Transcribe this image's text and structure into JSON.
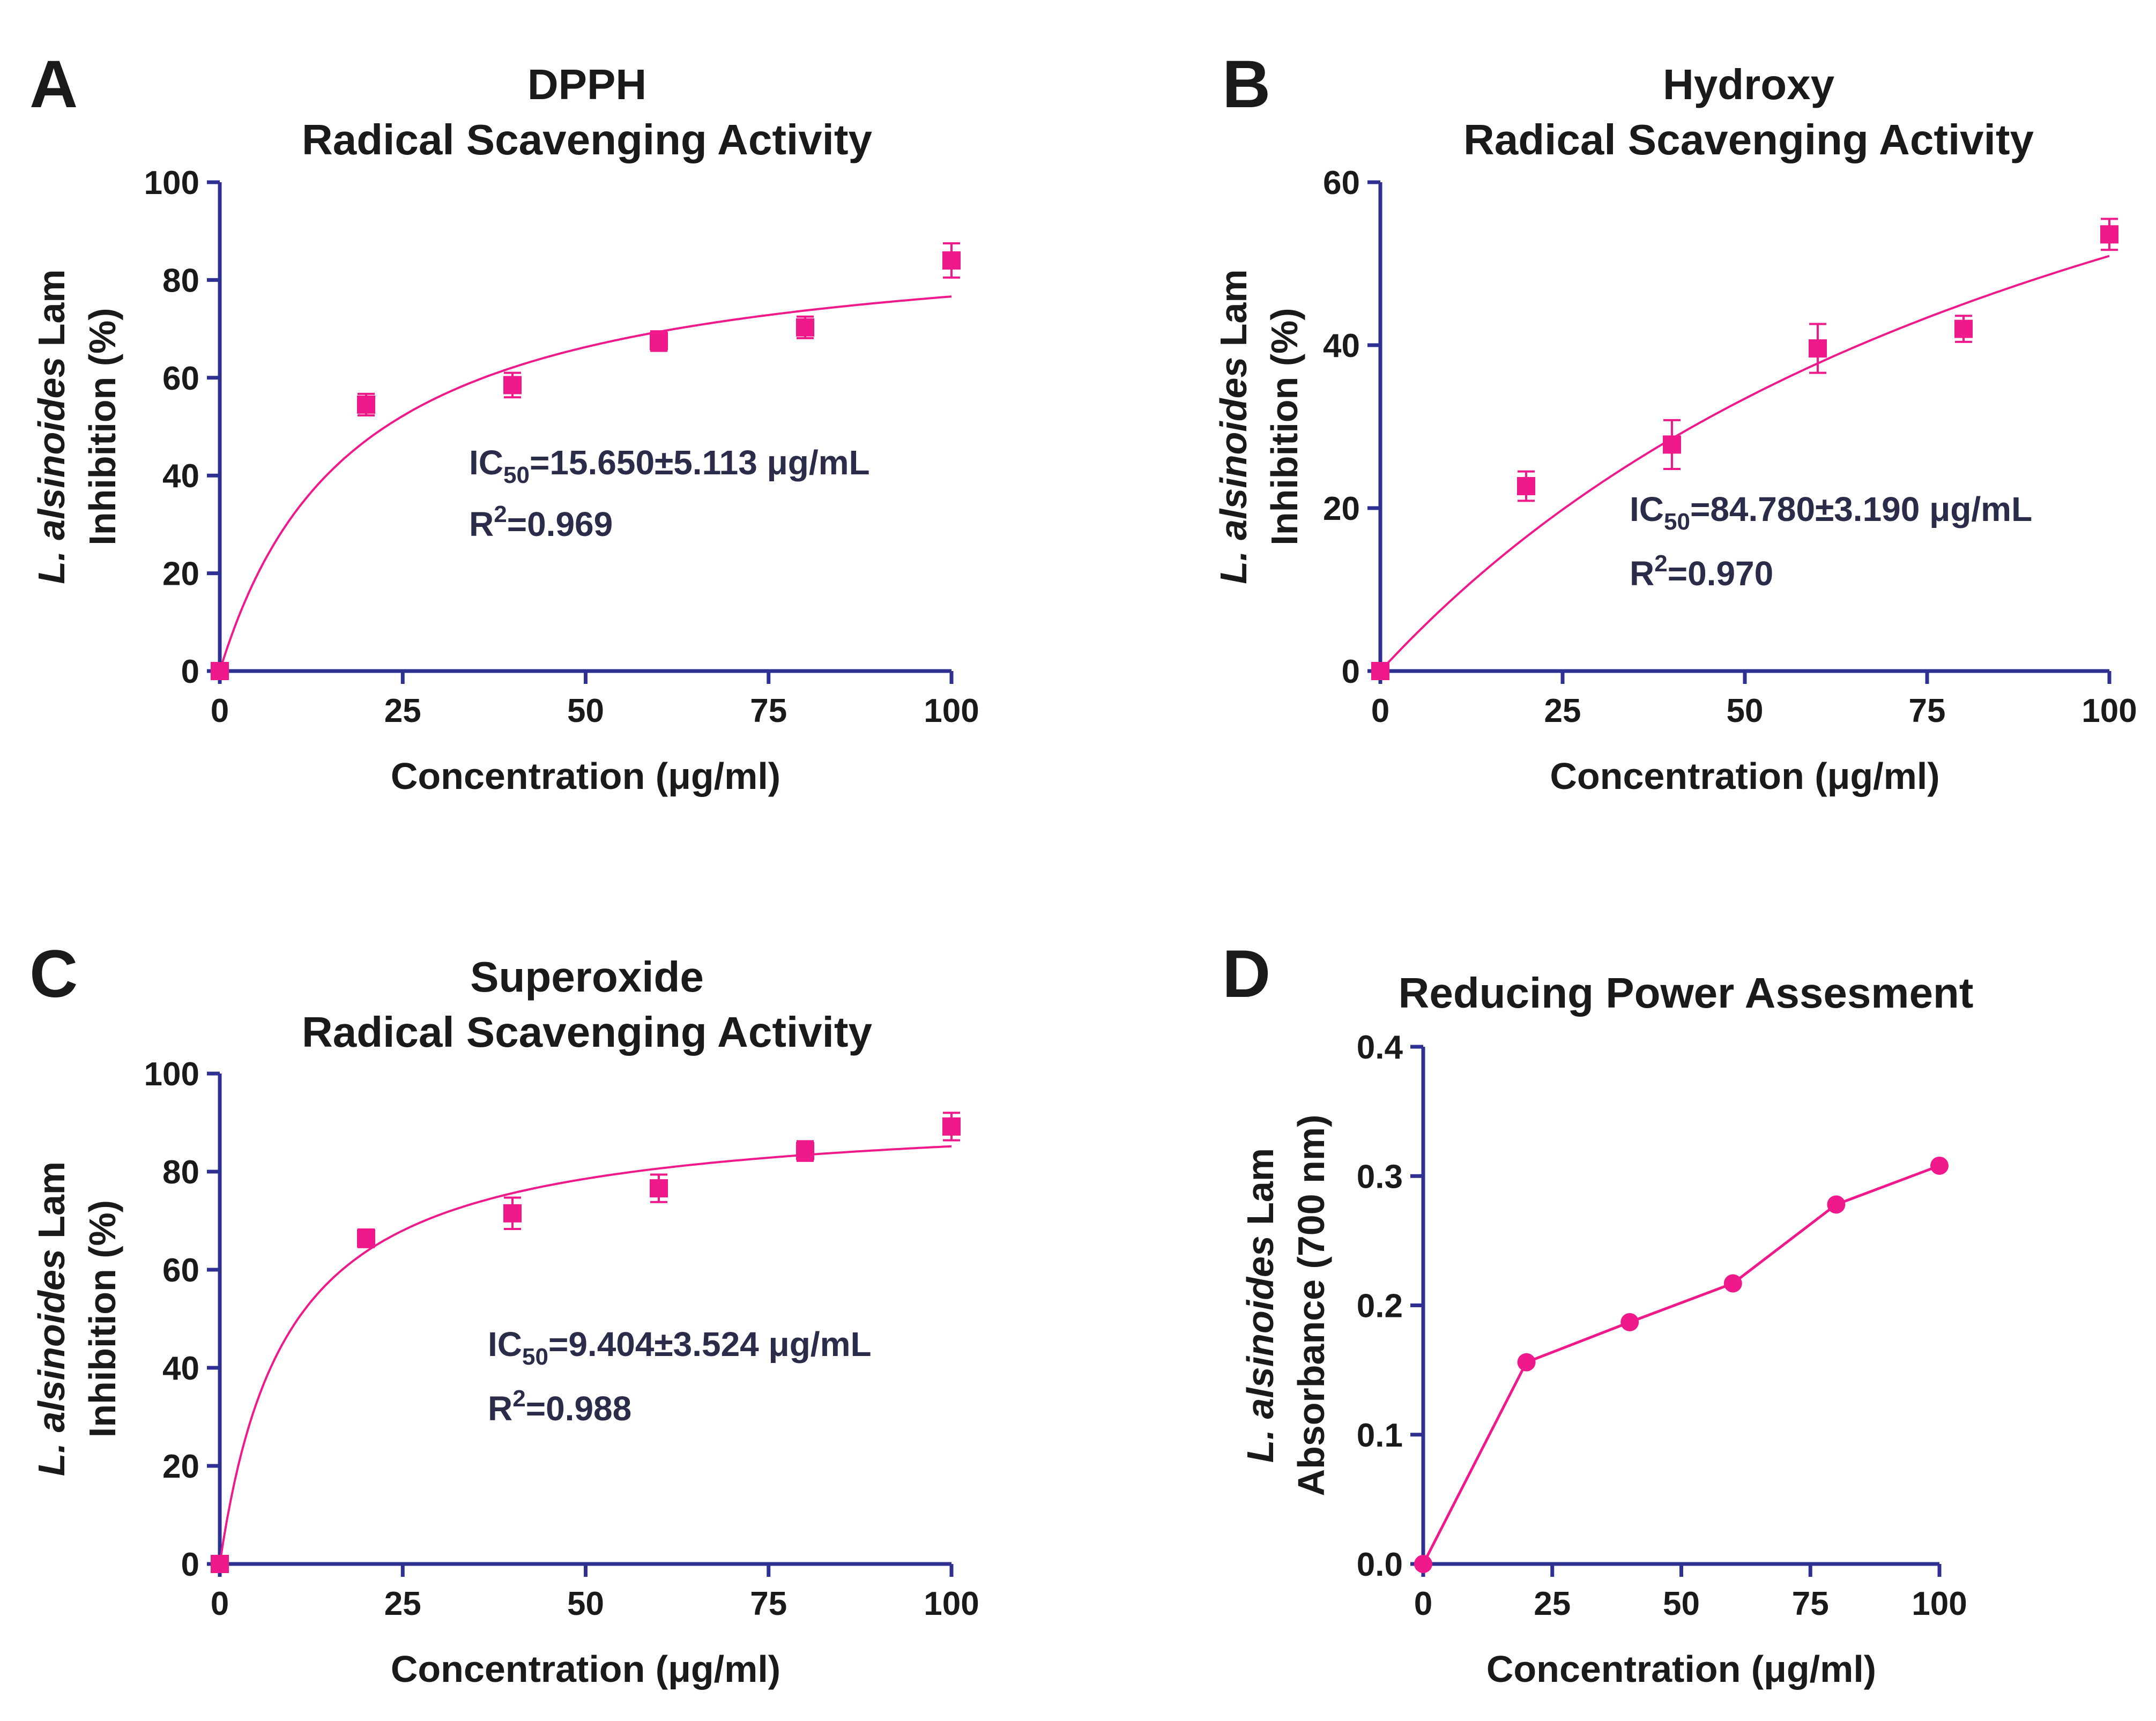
{
  "colors": {
    "axis": "#2e3192",
    "series": "#f0198c",
    "text": "#1a1a1a",
    "annotation": "#2b2b4a"
  },
  "chart_data": [
    {
      "panel": "A",
      "type": "scatter",
      "title": [
        "DPPH",
        "Radical Scavenging Activity"
      ],
      "ylabel_species_italic": "L. alsinoides",
      "ylabel_species_rest": " Lam",
      "ylabel_line2": "Inhibition (%)",
      "xlabel": "Concentration (μg/ml)",
      "xlim": [
        0,
        100
      ],
      "ylim": [
        0,
        100
      ],
      "xticks": [
        0,
        25,
        50,
        75,
        100
      ],
      "yticks": [
        0,
        20,
        40,
        60,
        80,
        100
      ],
      "x": [
        0,
        20,
        40,
        60,
        80,
        100
      ],
      "values": [
        0,
        54.5,
        58.5,
        67.5,
        70.3,
        84.0
      ],
      "errors": [
        0,
        2.2,
        2.5,
        2.0,
        2.2,
        3.5
      ],
      "fit": {
        "model": "hyperbolic",
        "vmax": 90.8,
        "k": 18.5
      },
      "annotation": {
        "ic_prefix": "IC",
        "ic_sub": "50",
        "ic_value": "=15.650±5.113 μg/mL",
        "r2_prefix": "R",
        "r2_sup": "2",
        "r2_value": "=0.969"
      }
    },
    {
      "panel": "B",
      "type": "scatter",
      "title": [
        "Hydroxy",
        "Radical Scavenging Activity"
      ],
      "ylabel_species_italic": "L. alsinoides",
      "ylabel_species_rest": " Lam",
      "ylabel_line2": "Inhibition (%)",
      "xlabel": "Concentration (μg/ml)",
      "xlim": [
        0,
        100
      ],
      "ylim": [
        0,
        60
      ],
      "xticks": [
        0,
        25,
        50,
        75,
        100
      ],
      "yticks": [
        0,
        20,
        40,
        60
      ],
      "x": [
        0,
        20,
        40,
        60,
        80,
        100
      ],
      "values": [
        0,
        22.7,
        27.8,
        39.6,
        42.0,
        53.6
      ],
      "errors": [
        0,
        1.8,
        3.0,
        3.0,
        1.6,
        1.9
      ],
      "fit": {
        "model": "hyperbolic",
        "vmax": 107.0,
        "k": 110.0
      },
      "annotation": {
        "ic_prefix": "IC",
        "ic_sub": "50",
        "ic_value": "=84.780±3.190 μg/mL",
        "r2_prefix": "R",
        "r2_sup": "2",
        "r2_value": "=0.970"
      }
    },
    {
      "panel": "C",
      "type": "scatter",
      "title": [
        "Superoxide",
        "Radical Scavenging Activity"
      ],
      "ylabel_species_italic": "L. alsinoides",
      "ylabel_species_rest": " Lam",
      "ylabel_line2": "Inhibition (%)",
      "xlabel": "Concentration (μg/ml)",
      "xlim": [
        0,
        100
      ],
      "ylim": [
        0,
        100
      ],
      "xticks": [
        0,
        25,
        50,
        75,
        100
      ],
      "yticks": [
        0,
        20,
        40,
        60,
        80,
        100
      ],
      "x": [
        0,
        20,
        40,
        60,
        80,
        100
      ],
      "values": [
        0,
        66.4,
        71.5,
        76.6,
        84.2,
        89.2
      ],
      "errors": [
        0,
        1.8,
        3.2,
        2.8,
        2.0,
        2.8
      ],
      "fit": {
        "model": "hyperbolic",
        "vmax": 93.0,
        "k": 9.2
      },
      "annotation": {
        "ic_prefix": "IC",
        "ic_sub": "50",
        "ic_value": "=9.404±3.524 μg/mL",
        "r2_prefix": "R",
        "r2_sup": "2",
        "r2_value": "=0.988"
      }
    },
    {
      "panel": "D",
      "type": "line",
      "title": [
        "Reducing Power Assesment"
      ],
      "ylabel_species_italic": "L. alsinoides",
      "ylabel_species_rest": " Lam",
      "ylabel_line2": "Absorbance (700 nm)",
      "xlabel": "Concentration (μg/ml)",
      "xlim": [
        0,
        100
      ],
      "ylim": [
        0,
        0.4
      ],
      "xticks": [
        0,
        25,
        50,
        75,
        100
      ],
      "yticks": [
        "0.0",
        "0.1",
        "0.2",
        "0.3",
        "0.4"
      ],
      "x": [
        0,
        20,
        40,
        60,
        80,
        100
      ],
      "values": [
        0,
        0.156,
        0.187,
        0.217,
        0.278,
        0.308
      ]
    }
  ]
}
